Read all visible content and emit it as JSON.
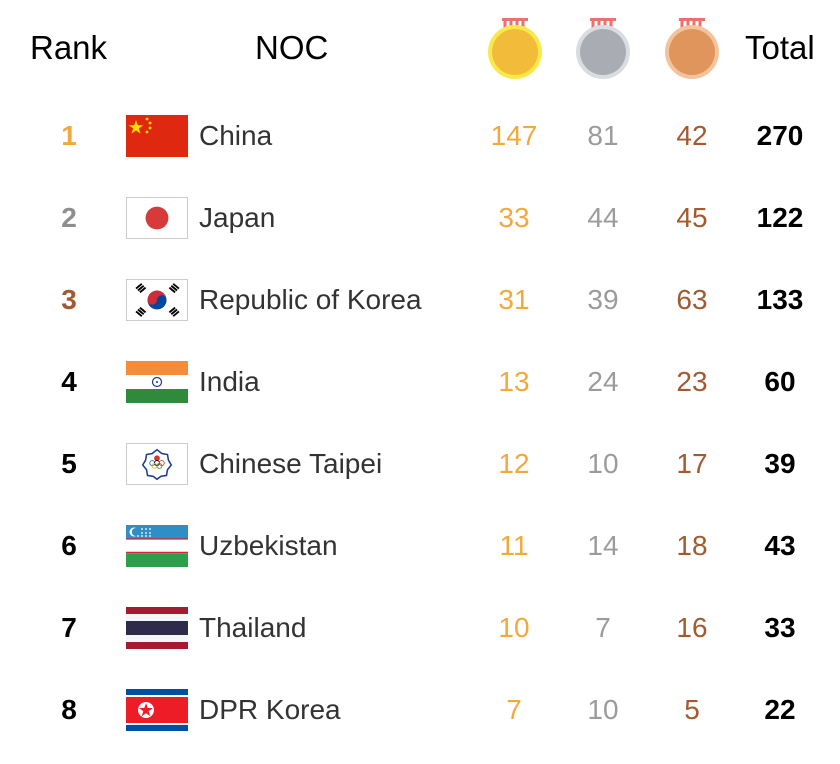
{
  "header": {
    "rank_label": "Rank",
    "noc_label": "NOC",
    "total_label": "Total",
    "medal_icons": [
      "gold-medal-icon",
      "silver-medal-icon",
      "bronze-medal-icon"
    ]
  },
  "colors": {
    "gold": "#F2A93B",
    "silver": "#9B9B9B",
    "bronze": "#A25A2E",
    "rank1": "#F2A93B",
    "rank2": "#8E8E8E",
    "rank3": "#A25A2E"
  },
  "rows": [
    {
      "rank": "1",
      "flag": "china-flag-icon",
      "noc": "China",
      "gold": "147",
      "silver": "81",
      "bronze": "42",
      "total": "270"
    },
    {
      "rank": "2",
      "flag": "japan-flag-icon",
      "noc": "Japan",
      "gold": "33",
      "silver": "44",
      "bronze": "45",
      "total": "122"
    },
    {
      "rank": "3",
      "flag": "korea-flag-icon",
      "noc": "Republic of Korea",
      "gold": "31",
      "silver": "39",
      "bronze": "63",
      "total": "133"
    },
    {
      "rank": "4",
      "flag": "india-flag-icon",
      "noc": "India",
      "gold": "13",
      "silver": "24",
      "bronze": "23",
      "total": "60"
    },
    {
      "rank": "5",
      "flag": "chinese-taipei-flag-icon",
      "noc": "Chinese Taipei",
      "gold": "12",
      "silver": "10",
      "bronze": "17",
      "total": "39"
    },
    {
      "rank": "6",
      "flag": "uzbekistan-flag-icon",
      "noc": "Uzbekistan",
      "gold": "11",
      "silver": "14",
      "bronze": "18",
      "total": "43"
    },
    {
      "rank": "7",
      "flag": "thailand-flag-icon",
      "noc": "Thailand",
      "gold": "10",
      "silver": "7",
      "bronze": "16",
      "total": "33"
    },
    {
      "rank": "8",
      "flag": "dpr-korea-flag-icon",
      "noc": "DPR Korea",
      "gold": "7",
      "silver": "10",
      "bronze": "5",
      "total": "22"
    }
  ]
}
